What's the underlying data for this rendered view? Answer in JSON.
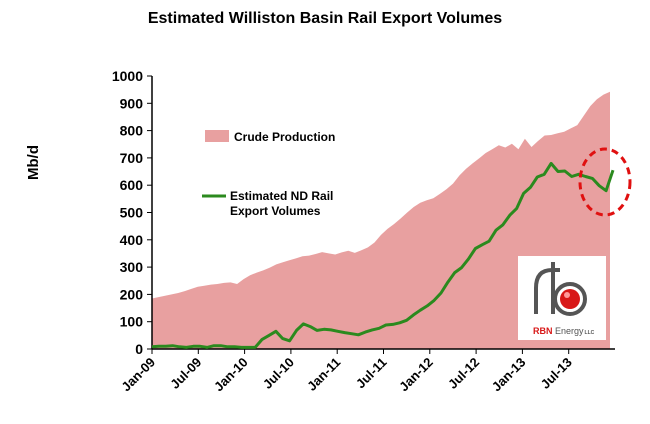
{
  "chart_data": {
    "type": "area",
    "title": "Estimated Williston Basin Rail Export Volumes",
    "xlabel": "",
    "ylabel": "Mb/d",
    "ylim": [
      0,
      1000
    ],
    "yticks": [
      0,
      100,
      200,
      300,
      400,
      500,
      600,
      700,
      800,
      900,
      1000
    ],
    "xticks": [
      "Jan-09",
      "Jul-09",
      "Jan-10",
      "Jul-10",
      "Jan-11",
      "Jul-11",
      "Jan-12",
      "Jul-12",
      "Jan-13",
      "Jul-13"
    ],
    "x_start": "Jan-09",
    "x_frequency": "monthly",
    "grid": false,
    "legend_position": "upper-left",
    "series": [
      {
        "name": "Crude Production",
        "type": "area",
        "color": "#e8a0a0",
        "values": [
          185,
          190,
          195,
          200,
          205,
          212,
          220,
          228,
          232,
          236,
          238,
          242,
          244,
          238,
          256,
          270,
          280,
          288,
          298,
          310,
          318,
          325,
          332,
          340,
          342,
          348,
          355,
          350,
          346,
          354,
          360,
          352,
          362,
          372,
          390,
          418,
          440,
          458,
          478,
          500,
          520,
          536,
          545,
          552,
          568,
          585,
          606,
          636,
          660,
          680,
          698,
          718,
          732,
          746,
          738,
          752,
          732,
          770,
          740,
          762,
          782,
          784,
          790,
          796,
          808,
          820,
          855,
          890,
          915,
          932,
          942
        ]
      },
      {
        "name": "Estimated ND Rail Export Volumes",
        "type": "line",
        "color": "#2b8a1e",
        "values": [
          8,
          10,
          10,
          12,
          8,
          6,
          10,
          10,
          6,
          12,
          12,
          8,
          8,
          6,
          6,
          6,
          35,
          50,
          65,
          38,
          30,
          68,
          92,
          82,
          68,
          72,
          70,
          65,
          60,
          56,
          52,
          62,
          70,
          76,
          88,
          90,
          96,
          105,
          125,
          142,
          158,
          178,
          205,
          245,
          280,
          298,
          330,
          368,
          382,
          395,
          435,
          455,
          490,
          515,
          570,
          592,
          630,
          640,
          680,
          650,
          652,
          632,
          640,
          632,
          625,
          598,
          580,
          655
        ]
      }
    ],
    "annotations": [
      "red dashed circle highlighting the mid-2013 dip in rail export volumes"
    ],
    "logo": {
      "text": "RBN Energy",
      "suffix": "LLC",
      "glyph": "rb"
    }
  }
}
